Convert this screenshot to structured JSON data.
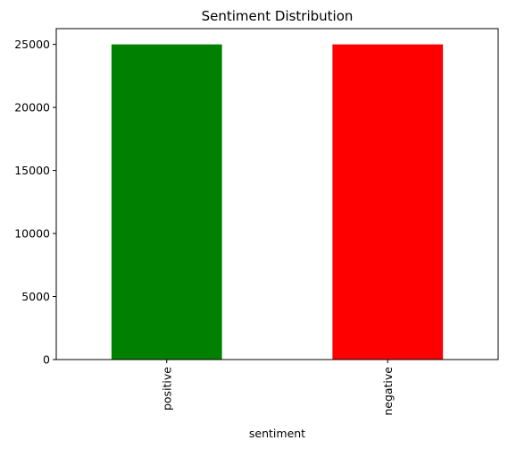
{
  "chart_data": {
    "type": "bar",
    "title": "Sentiment Distribution",
    "xlabel": "sentiment",
    "ylabel": "",
    "categories": [
      "positive",
      "negative"
    ],
    "values": [
      25000,
      25000
    ],
    "colors": [
      "#008000",
      "#ff0000"
    ],
    "ylim": [
      0,
      26250
    ],
    "yticks": [
      0,
      5000,
      10000,
      15000,
      20000,
      25000
    ],
    "ytick_labels": [
      "0",
      "5000",
      "10000",
      "15000",
      "20000",
      "25000"
    ],
    "grid": false,
    "legend": "none"
  }
}
